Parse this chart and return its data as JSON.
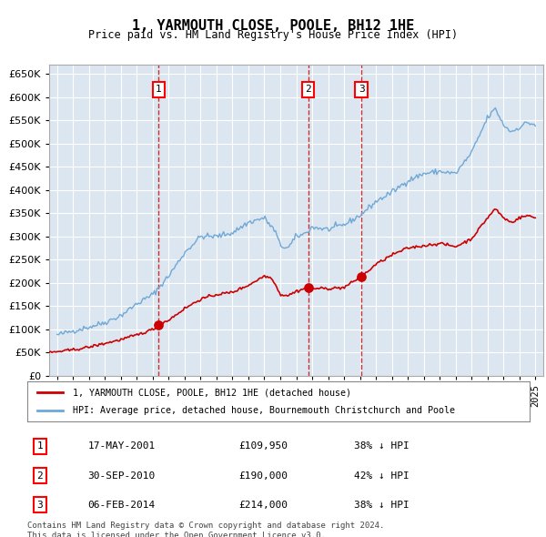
{
  "title": "1, YARMOUTH CLOSE, POOLE, BH12 1HE",
  "subtitle": "Price paid vs. HM Land Registry's House Price Index (HPI)",
  "background_color": "#dce6f0",
  "plot_bg_color": "#dce6f0",
  "hpi_color": "#6fa8d6",
  "price_color": "#cc0000",
  "grid_color": "#ffffff",
  "ylim": [
    0,
    670000
  ],
  "yticks": [
    0,
    50000,
    100000,
    150000,
    200000,
    250000,
    300000,
    350000,
    400000,
    450000,
    500000,
    550000,
    600000,
    650000
  ],
  "ytick_labels": [
    "£0",
    "£50K",
    "£100K",
    "£150K",
    "£200K",
    "£250K",
    "£300K",
    "£350K",
    "£400K",
    "£450K",
    "£500K",
    "£550K",
    "£600K",
    "£650K"
  ],
  "legend_house_label": "1, YARMOUTH CLOSE, POOLE, BH12 1HE (detached house)",
  "legend_hpi_label": "HPI: Average price, detached house, Bournemouth Christchurch and Poole",
  "sales": [
    {
      "num": 1,
      "date": "17-MAY-2001",
      "price": 109950,
      "pct": "38%",
      "dir": "↓"
    },
    {
      "num": 2,
      "date": "30-SEP-2010",
      "price": 190000,
      "pct": "42%",
      "dir": "↓"
    },
    {
      "num": 3,
      "date": "06-FEB-2014",
      "price": 214000,
      "pct": "38%",
      "dir": "↓"
    }
  ],
  "sale_dates_decimal": [
    2001.37,
    2010.75,
    2014.09
  ],
  "footer": "Contains HM Land Registry data © Crown copyright and database right 2024.\nThis data is licensed under the Open Government Licence v3.0.",
  "xmin": 1994.5,
  "xmax": 2025.5
}
